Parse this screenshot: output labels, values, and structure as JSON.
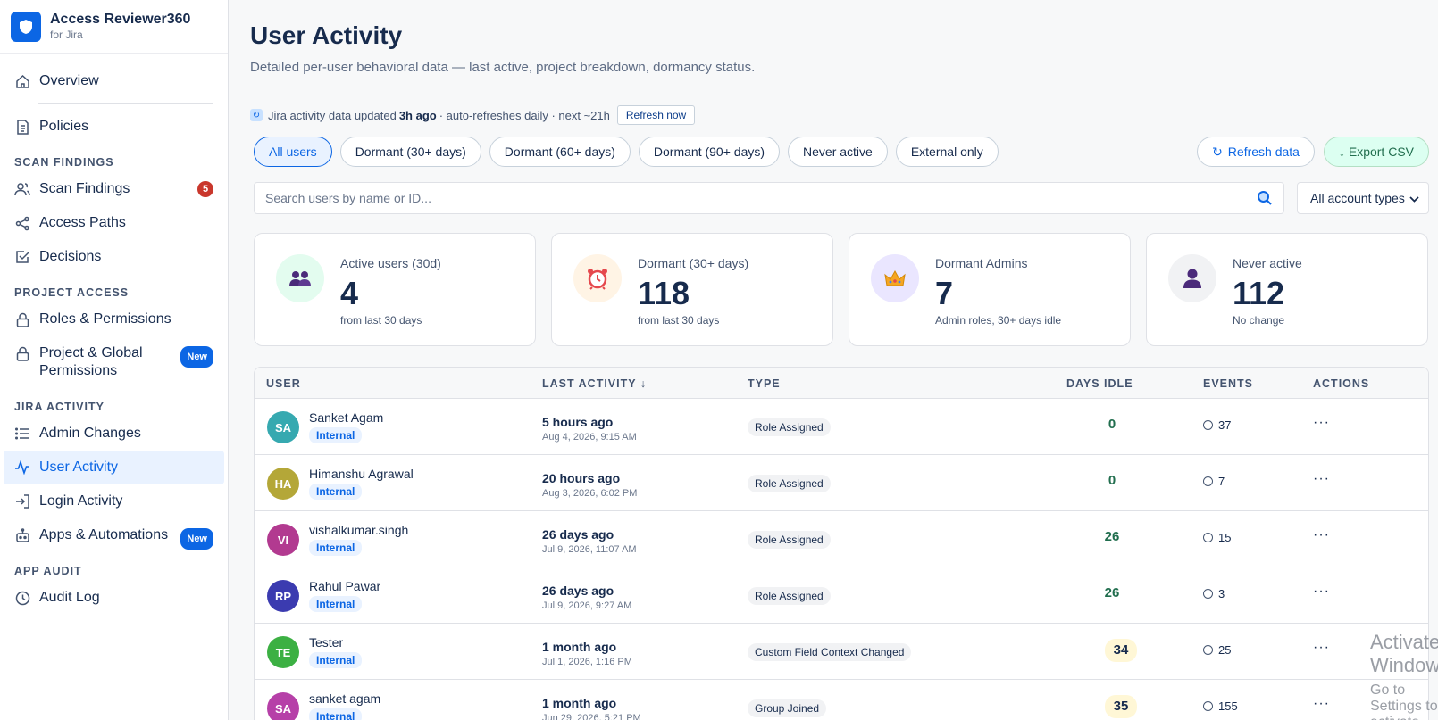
{
  "brand": {
    "title": "Access Reviewer360",
    "subtitle": "for Jira",
    "logo_icon": "shield-icon",
    "color": "#0c66e4"
  },
  "sidebar": {
    "top_items": [
      {
        "label": "Overview",
        "icon": "home-icon"
      },
      {
        "label": "Policies",
        "icon": "document-icon"
      }
    ],
    "sections": [
      {
        "label": "SCAN FINDINGS",
        "items": [
          {
            "label": "Scan Findings",
            "icon": "users-icon",
            "badge": "5"
          },
          {
            "label": "Access Paths",
            "icon": "share-icon"
          },
          {
            "label": "Decisions",
            "icon": "checkbox-icon"
          }
        ]
      },
      {
        "label": "PROJECT ACCESS",
        "items": [
          {
            "label": "Roles & Permissions",
            "icon": "lock-icon"
          },
          {
            "label": "Project & Global",
            "label2": "Permissions",
            "icon": "lock-icon",
            "badge": "New"
          }
        ]
      },
      {
        "label": "JIRA ACTIVITY",
        "items": [
          {
            "label": "Admin Changes",
            "icon": "list-icon"
          },
          {
            "label": "User Activity",
            "icon": "activity-icon",
            "active": true
          },
          {
            "label": "Login Activity",
            "icon": "login-icon"
          },
          {
            "label": "Apps & Automations",
            "icon": "robot-icon",
            "badge": "New"
          }
        ]
      },
      {
        "label": "APP AUDIT",
        "items": [
          {
            "label": "Audit Log",
            "icon": "clock-icon"
          }
        ]
      }
    ]
  },
  "header": {
    "title": "User Activity",
    "subtitle": "Detailed per-user behavioral data — last active, project breakdown, dormancy status."
  },
  "sync": {
    "prefix": "Jira activity data updated",
    "age": "3h ago",
    "suffix": "· auto-refreshes daily · next ~21h",
    "button": "Refresh now"
  },
  "filters": [
    "All users",
    "Dormant (30+ days)",
    "Dormant (60+ days)",
    "Dormant (90+ days)",
    "Never active",
    "External only"
  ],
  "toolbar": {
    "refresh_label": "Refresh data",
    "export_label": "↓ Export CSV"
  },
  "search": {
    "placeholder": "Search users by name or ID...",
    "value": ""
  },
  "account_filter": {
    "selected": "All account types"
  },
  "cards": [
    {
      "label": "Active users (30d)",
      "value": "4",
      "note": "from last 30 days",
      "icon": "users-icon",
      "bg": "#e3fcef"
    },
    {
      "label": "Dormant (30+ days)",
      "value": "118",
      "note": "from last 30 days",
      "icon": "alarm-clock-icon",
      "bg": "#fff4e5"
    },
    {
      "label": "Dormant Admins",
      "value": "7",
      "note": "Admin roles, 30+ days idle",
      "icon": "crown-icon",
      "bg": "#eae6ff"
    },
    {
      "label": "Never active",
      "value": "112",
      "note": "No change",
      "icon": "user-silhouette-icon",
      "bg": "#f1f2f4"
    }
  ],
  "table": {
    "headers": {
      "user": "USER",
      "last_activity": "LAST ACTIVITY ↓",
      "type": "TYPE",
      "days_idle": "DAYS IDLE",
      "events": "EVENTS",
      "actions": "ACTIONS"
    },
    "rows": [
      {
        "initials": "SA",
        "color": "#36a9b0",
        "name": "Sanket Agam",
        "kind": "Internal",
        "ago": "5 hours ago",
        "date": "Aug 4, 2026, 9:15 AM",
        "type": "Role Assigned",
        "idle": "0",
        "events": "37"
      },
      {
        "initials": "HA",
        "color": "#b4a738",
        "name": "Himanshu Agrawal",
        "kind": "Internal",
        "ago": "20 hours ago",
        "date": "Aug 3, 2026, 6:02 PM",
        "type": "Role Assigned",
        "idle": "0",
        "events": "7"
      },
      {
        "initials": "VI",
        "color": "#b23a90",
        "name": "vishalkumar.singh",
        "kind": "Internal",
        "ago": "26 days ago",
        "date": "Jul 9, 2026, 11:07 AM",
        "type": "Role Assigned",
        "idle": "26",
        "events": "15"
      },
      {
        "initials": "RP",
        "color": "#3b3bb0",
        "name": "Rahul Pawar",
        "kind": "Internal",
        "ago": "26 days ago",
        "date": "Jul 9, 2026, 9:27 AM",
        "type": "Role Assigned",
        "idle": "26",
        "events": "3"
      },
      {
        "initials": "TE",
        "color": "#3cb043",
        "name": "Tester",
        "kind": "Internal",
        "ago": "1 month ago",
        "date": "Jul 1, 2026, 1:16 PM",
        "type": "Custom Field Context Changed",
        "idle": "34",
        "events": "25",
        "warn": true
      },
      {
        "initials": "SA",
        "color": "#b640a8",
        "name": "sanket agam",
        "kind": "Internal",
        "ago": "1 month ago",
        "date": "Jun 29, 2026, 5:21 PM",
        "type": "Group Joined",
        "idle": "35",
        "events": "155",
        "warn": true
      }
    ]
  },
  "watermark": {
    "line1": "Activate Windows",
    "line2": "Go to Settings to activate Windows."
  }
}
